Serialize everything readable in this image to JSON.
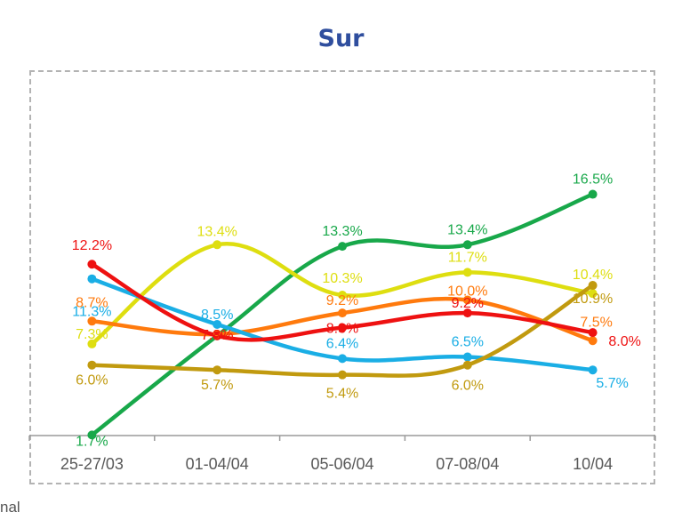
{
  "page": {
    "edge_text": "nal"
  },
  "chart_data": {
    "type": "line",
    "title": "Sur",
    "categories": [
      "25-27/03",
      "01-04/04",
      "05-06/04",
      "07-08/04",
      "10/04"
    ],
    "ylim": [
      0,
      20
    ],
    "grid": false,
    "legend": "none",
    "series": [
      {
        "color": "#18a84a",
        "values": [
          1.7,
          7.8,
          13.3,
          13.4,
          16.5
        ],
        "labels": [
          "1.7%",
          "",
          "13.3%",
          "13.4%",
          "16.5%"
        ]
      },
      {
        "color": "#dede10",
        "values": [
          7.3,
          13.4,
          10.3,
          11.7,
          10.4
        ],
        "labels": [
          "7.3%",
          "13.4%",
          "10.3%",
          "11.7%",
          "10.4%"
        ]
      },
      {
        "color": "#ff7a0d",
        "values": [
          8.7,
          7.9,
          9.2,
          10.0,
          7.5
        ],
        "labels": [
          "8.7%",
          "7.9%",
          "9.2%",
          "10.0%",
          "7.5%"
        ]
      },
      {
        "color": "#1aaee5",
        "values": [
          11.3,
          8.5,
          6.4,
          6.5,
          5.7
        ],
        "labels": [
          "11.3%",
          "8.5%",
          "6.4%",
          "6.5%",
          "5.7%"
        ]
      },
      {
        "color": "#c19a0f",
        "values": [
          6.0,
          5.7,
          5.4,
          6.0,
          10.9
        ],
        "labels": [
          "6.0%",
          "5.7%",
          "5.4%",
          "6.0%",
          "10.9%"
        ]
      },
      {
        "color": "#ee1111",
        "values": [
          12.2,
          7.8,
          8.3,
          9.2,
          8.0
        ],
        "labels": [
          "12.2%",
          "7.8%",
          "8.3%",
          "9.2%",
          "8.0%"
        ]
      }
    ]
  }
}
